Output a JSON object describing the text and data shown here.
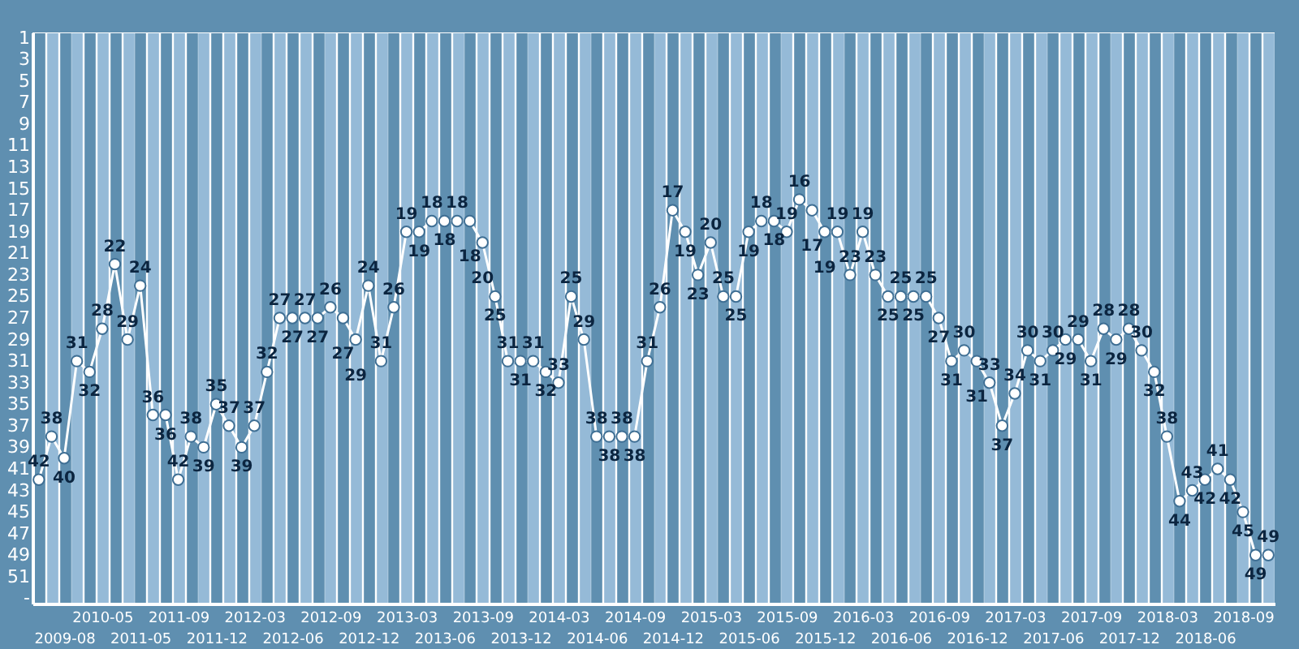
{
  "chart_data": {
    "type": "line",
    "categories": [
      null,
      null,
      "2009-08",
      null,
      null,
      "2010-05",
      null,
      null,
      "2011-05",
      null,
      null,
      "2011-09",
      null,
      null,
      "2011-12",
      null,
      null,
      "2012-03",
      null,
      null,
      "2012-06",
      null,
      null,
      "2012-09",
      null,
      null,
      "2012-12",
      null,
      null,
      "2013-03",
      null,
      null,
      "2013-06",
      null,
      null,
      "2013-09",
      null,
      null,
      "2013-12",
      null,
      null,
      "2014-03",
      null,
      null,
      "2014-06",
      null,
      null,
      "2014-09",
      null,
      null,
      "2014-12",
      null,
      null,
      "2015-03",
      null,
      null,
      "2015-06",
      null,
      null,
      "2015-09",
      null,
      null,
      "2015-12",
      null,
      null,
      "2016-03",
      null,
      null,
      "2016-06",
      null,
      null,
      "2016-09",
      null,
      null,
      "2016-12",
      null,
      null,
      "2017-03",
      null,
      null,
      "2017-06",
      null,
      null,
      "2017-09",
      null,
      null,
      "2017-12",
      null,
      null,
      "2018-03",
      null,
      null,
      "2018-06",
      null,
      null,
      "2018-09",
      null,
      null
    ],
    "values": [
      42,
      38,
      40,
      31,
      32,
      28,
      22,
      29,
      24,
      36,
      36,
      42,
      38,
      39,
      35,
      37,
      39,
      37,
      32,
      27,
      27,
      27,
      27,
      26,
      27,
      29,
      24,
      31,
      26,
      19,
      19,
      18,
      18,
      18,
      18,
      20,
      25,
      31,
      31,
      31,
      32,
      33,
      25,
      29,
      38,
      38,
      38,
      38,
      31,
      26,
      17,
      19,
      23,
      20,
      25,
      25,
      19,
      18,
      18,
      19,
      16,
      17,
      19,
      19,
      23,
      19,
      23,
      25,
      25,
      25,
      25,
      27,
      31,
      30,
      31,
      33,
      37,
      34,
      30,
      31,
      30,
      29,
      29,
      31,
      28,
      29,
      28,
      30,
      32,
      38,
      44,
      43,
      42,
      41,
      42,
      45,
      49,
      49
    ],
    "color": "#ffffff",
    "ylim": [
      53.5,
      0.5
    ],
    "yticks": [
      1,
      3,
      5,
      7,
      9,
      11,
      13,
      15,
      17,
      19,
      21,
      23,
      25,
      27,
      29,
      31,
      33,
      35,
      37,
      39,
      41,
      43,
      45,
      47,
      49,
      51,
      {
        "value": 53,
        "label": "-"
      }
    ],
    "grid": "x",
    "marker": "circle",
    "data_labels": true
  }
}
